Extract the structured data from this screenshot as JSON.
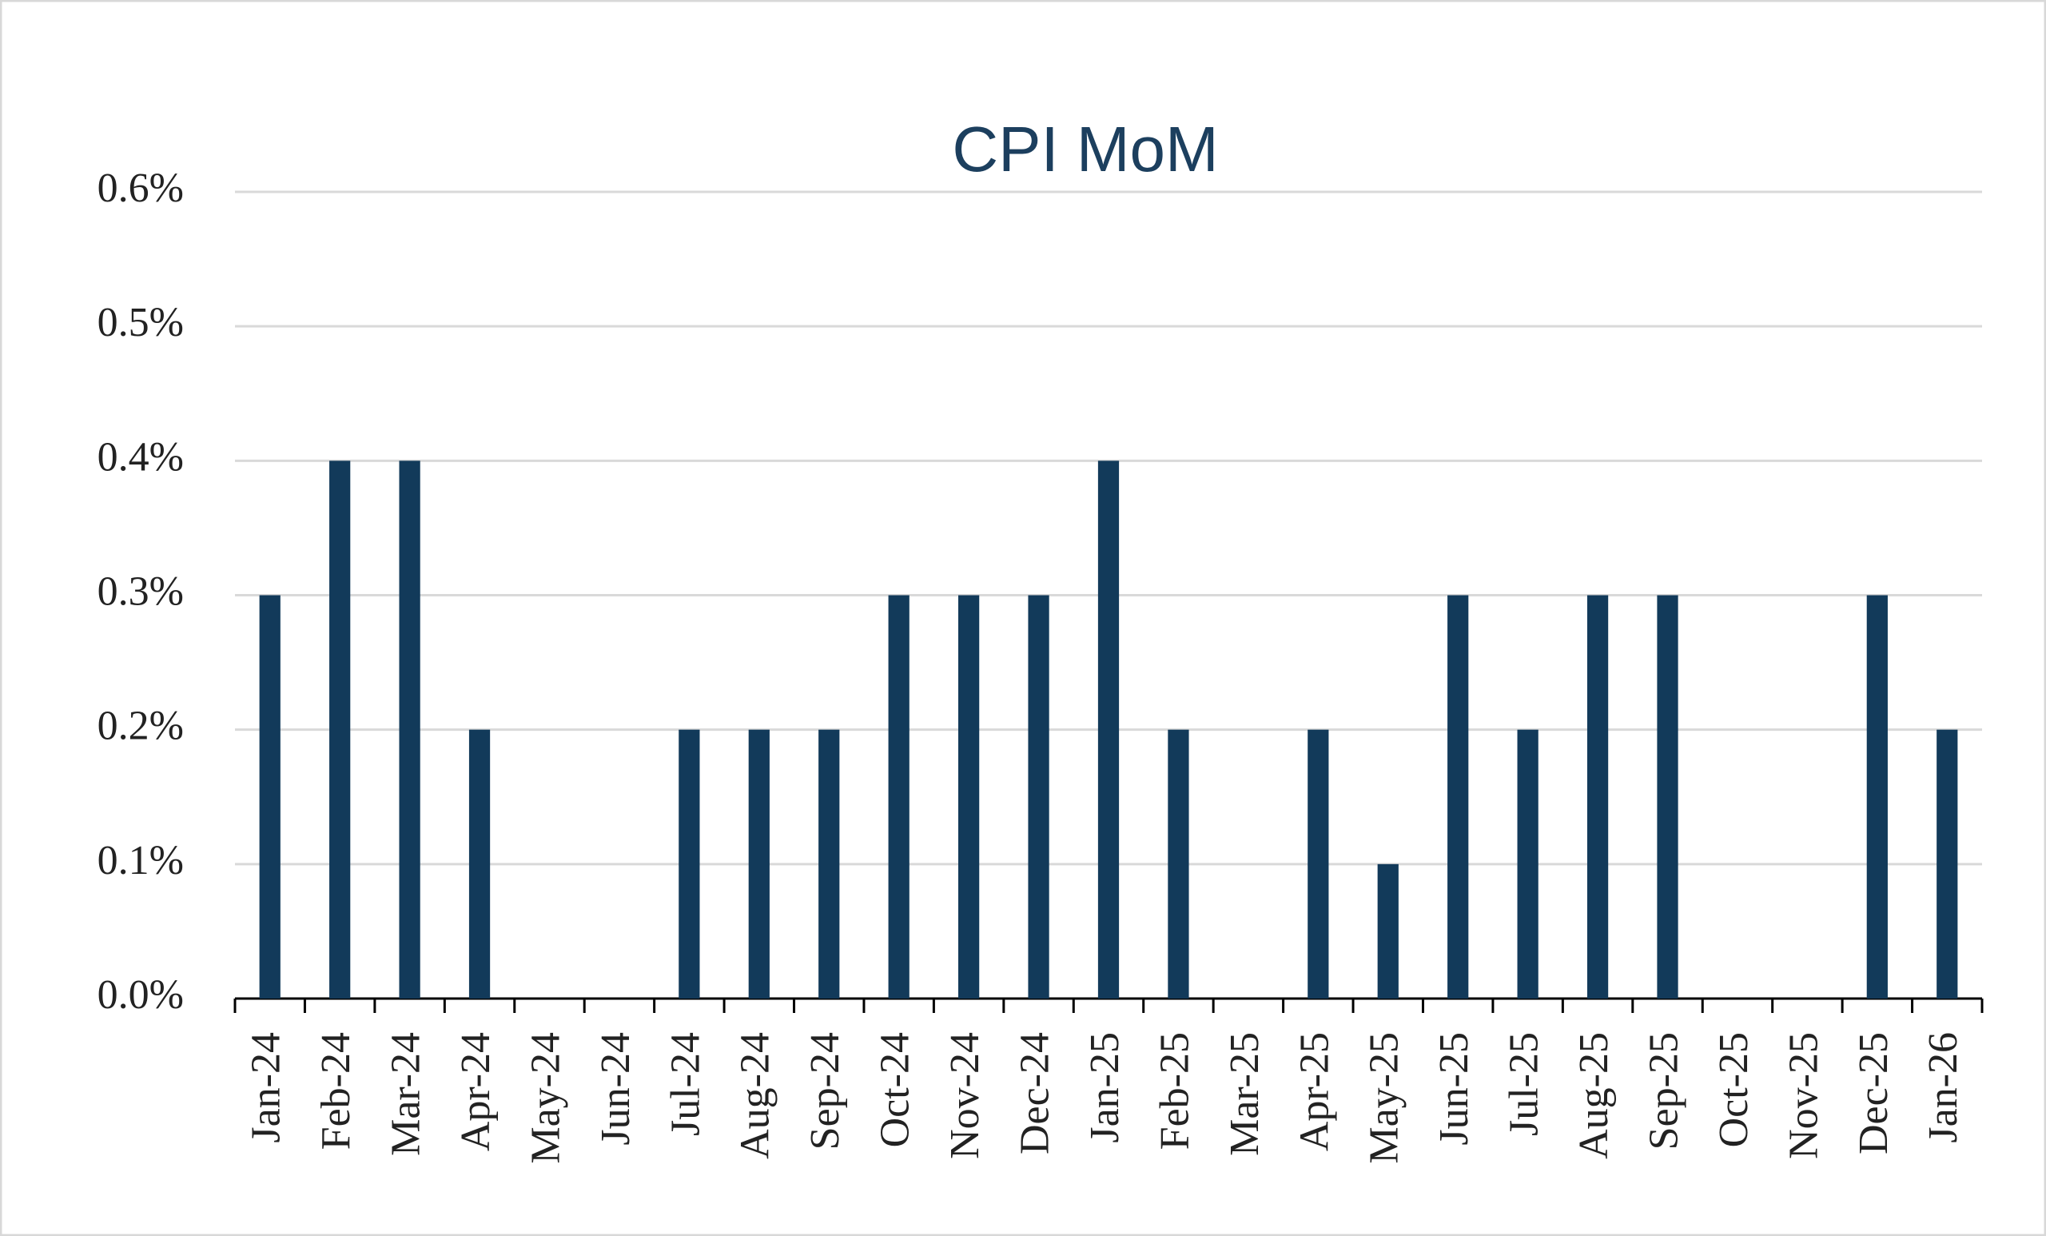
{
  "chart_data": {
    "type": "bar",
    "title": "CPI MoM",
    "categories": [
      "Jan-24",
      "Feb-24",
      "Mar-24",
      "Apr-24",
      "May-24",
      "Jun-24",
      "Jul-24",
      "Aug-24",
      "Sep-24",
      "Oct-24",
      "Nov-24",
      "Dec-24",
      "Jan-25",
      "Feb-25",
      "Mar-25",
      "Apr-25",
      "May-25",
      "Jun-25",
      "Jul-25",
      "Aug-25",
      "Sep-25",
      "Oct-25",
      "Nov-25",
      "Dec-25",
      "Jan-26"
    ],
    "values": [
      0.3,
      0.4,
      0.4,
      0.2,
      0,
      0,
      0.2,
      0.2,
      0.2,
      0.3,
      0.3,
      0.3,
      0.4,
      0.2,
      0,
      0.2,
      0.1,
      0.3,
      0.2,
      0.3,
      0.3,
      0,
      0,
      0.3,
      0.2
    ],
    "color": "#123a5a",
    "ylim": [
      0,
      0.6
    ],
    "yticks": [
      {
        "value": 0,
        "label": "0.0%"
      },
      {
        "value": 0.1,
        "label": "0.1%"
      },
      {
        "value": 0.2,
        "label": "0.2%"
      },
      {
        "value": 0.3,
        "label": "0.3%"
      },
      {
        "value": 0.4,
        "label": "0.4%"
      },
      {
        "value": 0.5,
        "label": "0.5%"
      },
      {
        "value": 0.6,
        "label": "0.6%"
      }
    ],
    "grid": true
  }
}
